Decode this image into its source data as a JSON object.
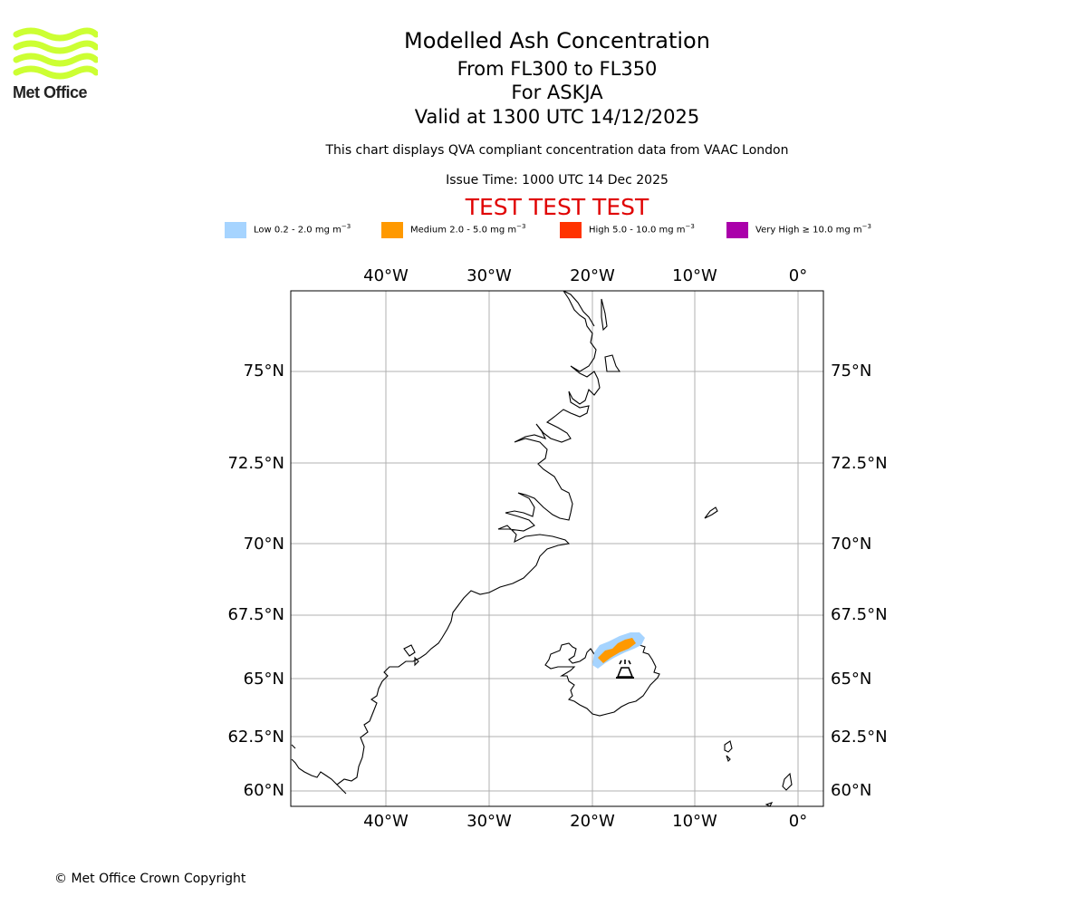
{
  "logo": {
    "text": "Met Office",
    "color": "#ccff33"
  },
  "title": {
    "line1": "Modelled Ash Concentration",
    "line2": "From FL300 to FL350",
    "line3": "For ASKJA",
    "line4": "Valid at 1300 UTC 14/12/2025"
  },
  "subtitle": {
    "description": "This chart displays QVA compliant concentration data from VAAC London",
    "issue_time": "Issue Time: 1000 UTC 14 Dec 2025",
    "test_banner": "TEST TEST TEST"
  },
  "legend": [
    {
      "name": "Low",
      "range": "0.2 - 2.0 mg m",
      "color": "#a6d4ff"
    },
    {
      "name": "Medium",
      "range": "2.0 - 5.0 mg m",
      "color": "#ff9900"
    },
    {
      "name": "High",
      "range": "5.0 - 10.0 mg m",
      "color": "#ff3300"
    },
    {
      "name": "Very High",
      "range": "≥  10.0 mg m",
      "color": "#aa00aa"
    }
  ],
  "legend_unit_exponent": "−3",
  "map": {
    "lon_ticks": [
      "40°W",
      "30°W",
      "20°W",
      "10°W",
      "0°"
    ],
    "lat_ticks": [
      "75°N",
      "72.5°N",
      "70°N",
      "67.5°N",
      "65°N",
      "62.5°N",
      "60°N"
    ],
    "volcano": "ASKJA",
    "gridline_color": "#b0b0b0"
  },
  "copyright": "© Met Office Crown Copyright"
}
